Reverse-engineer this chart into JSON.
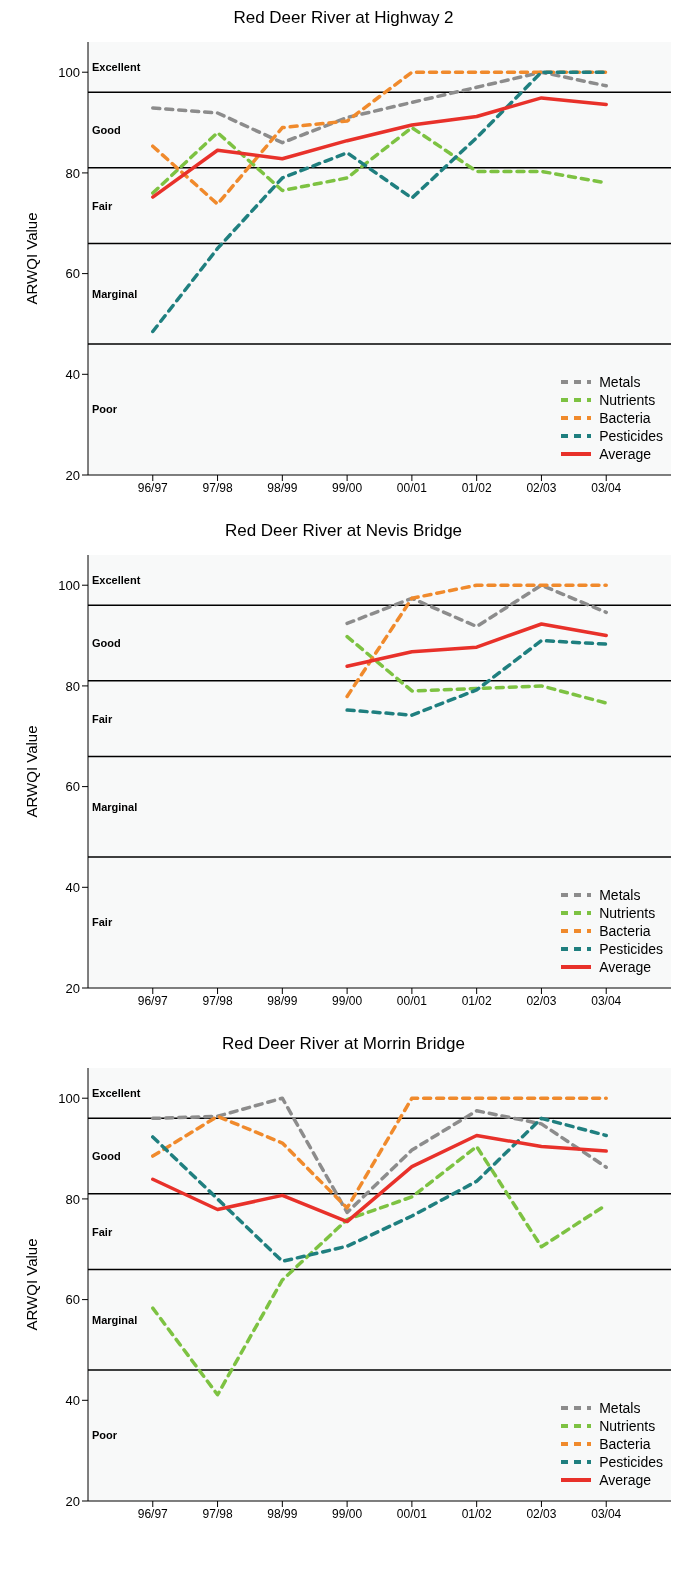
{
  "chart_data": [
    {
      "type": "line",
      "title": "Red Deer River at Highway 2",
      "ylabel": "ARWQI Value",
      "categories": [
        "96/97",
        "97/98",
        "98/99",
        "99/00",
        "00/01",
        "01/02",
        "02/03",
        "03/04"
      ],
      "ylim": [
        20,
        106
      ],
      "yticks": [
        20,
        40,
        60,
        80,
        100
      ],
      "grid": false,
      "legend": "bottom right",
      "marker": "none",
      "series": [
        {
          "name": "Metals",
          "color": "#8c8c8c",
          "line_style": "dashed",
          "values": [
            92.9,
            91.9,
            86,
            91,
            94,
            97,
            100,
            97.3
          ]
        },
        {
          "name": "Nutrients",
          "color": "#7dc242",
          "line_style": "dashed",
          "values": [
            76,
            88,
            76.5,
            79,
            89,
            80.3,
            80.3,
            78
          ]
        },
        {
          "name": "Bacteria",
          "color": "#f08a2c",
          "line_style": "dashed",
          "values": [
            85.3,
            73.8,
            89,
            90.3,
            100,
            100,
            100,
            100
          ]
        },
        {
          "name": "Pesticides",
          "color": "#1f7f7f",
          "line_style": "dashed",
          "values": [
            48.5,
            65,
            79,
            84,
            75,
            87,
            100,
            100
          ]
        },
        {
          "name": "Average",
          "color": "#e8312a",
          "line_style": "solid",
          "values": [
            75.2,
            84.5,
            82.8,
            86.4,
            89.5,
            91.2,
            94.9,
            93.6
          ]
        }
      ],
      "ref_lines": [
        {
          "axis": "y",
          "value": 96,
          "color": "#000000"
        },
        {
          "axis": "y",
          "value": 81,
          "color": "#000000"
        },
        {
          "axis": "y",
          "value": 66,
          "color": "#000000"
        },
        {
          "axis": "y",
          "value": 46,
          "color": "#000000"
        }
      ],
      "bands": [
        {
          "axis": "y",
          "from": 96,
          "to": 106,
          "label": "Excellent",
          "color": "#f8f9f9"
        },
        {
          "axis": "y",
          "from": 81,
          "to": 96,
          "label": "Good",
          "color": "#f8f9f9"
        },
        {
          "axis": "y",
          "from": 66,
          "to": 81,
          "label": "Fair",
          "color": "#f8f9f9"
        },
        {
          "axis": "y",
          "from": 46,
          "to": 66,
          "label": "Marginal",
          "color": "#f8f9f9"
        },
        {
          "axis": "y",
          "from": 20,
          "to": 46,
          "label": "Poor",
          "color": "#f8f9f9"
        }
      ]
    },
    {
      "type": "line",
      "title": "Red Deer River at Nevis Bridge",
      "ylabel": "ARWQI Value",
      "categories": [
        "96/97",
        "97/98",
        "98/99",
        "99/00",
        "00/01",
        "01/02",
        "02/03",
        "03/04"
      ],
      "ylim": [
        20,
        106
      ],
      "yticks": [
        20,
        40,
        60,
        80,
        100
      ],
      "grid": false,
      "legend": "bottom right",
      "marker": "none",
      "series": [
        {
          "name": "Metals",
          "color": "#8c8c8c",
          "line_style": "dashed",
          "values": [
            null,
            null,
            null,
            92.4,
            97.4,
            91.8,
            100,
            94.6
          ]
        },
        {
          "name": "Nutrients",
          "color": "#7dc242",
          "line_style": "dashed",
          "values": [
            null,
            null,
            null,
            89.8,
            79,
            79.5,
            80,
            76.6
          ]
        },
        {
          "name": "Bacteria",
          "color": "#f08a2c",
          "line_style": "dashed",
          "values": [
            null,
            null,
            null,
            77.9,
            97.4,
            100,
            100,
            100
          ]
        },
        {
          "name": "Pesticides",
          "color": "#1f7f7f",
          "line_style": "dashed",
          "values": [
            null,
            null,
            null,
            75.2,
            74.2,
            79.2,
            89,
            88.3
          ]
        },
        {
          "name": "Average",
          "color": "#e8312a",
          "line_style": "solid",
          "values": [
            null,
            null,
            null,
            83.9,
            86.8,
            87.7,
            92.3,
            90
          ]
        }
      ],
      "ref_lines": [
        {
          "axis": "y",
          "value": 96,
          "color": "#000000"
        },
        {
          "axis": "y",
          "value": 81,
          "color": "#000000"
        },
        {
          "axis": "y",
          "value": 66,
          "color": "#000000"
        },
        {
          "axis": "y",
          "value": 46,
          "color": "#000000"
        }
      ],
      "bands": [
        {
          "axis": "y",
          "from": 96,
          "to": 106,
          "label": "Excellent",
          "color": "#f8f9f9"
        },
        {
          "axis": "y",
          "from": 81,
          "to": 96,
          "label": "Good",
          "color": "#f8f9f9"
        },
        {
          "axis": "y",
          "from": 66,
          "to": 81,
          "label": "Fair",
          "color": "#f8f9f9"
        },
        {
          "axis": "y",
          "from": 46,
          "to": 66,
          "label": "Marginal",
          "color": "#f8f9f9"
        },
        {
          "axis": "y",
          "from": 20,
          "to": 46,
          "label": "Fair",
          "color": "#f8f9f9"
        }
      ]
    },
    {
      "type": "line",
      "title": "Red Deer River at Morrin Bridge",
      "ylabel": "ARWQI Value",
      "categories": [
        "96/97",
        "97/98",
        "98/99",
        "99/00",
        "00/01",
        "01/02",
        "02/03",
        "03/04"
      ],
      "ylim": [
        20,
        106
      ],
      "yticks": [
        20,
        40,
        60,
        80,
        100
      ],
      "grid": false,
      "legend": "bottom right",
      "marker": "none",
      "series": [
        {
          "name": "Metals",
          "color": "#8c8c8c",
          "line_style": "dashed",
          "values": [
            96,
            96.4,
            100,
            77.3,
            89.7,
            97.5,
            94.9,
            86.3
          ]
        },
        {
          "name": "Nutrients",
          "color": "#7dc242",
          "line_style": "dashed",
          "values": [
            58.3,
            41.1,
            63.9,
            75.9,
            80.4,
            90.4,
            70.5,
            78.8
          ]
        },
        {
          "name": "Bacteria",
          "color": "#f08a2c",
          "line_style": "dashed",
          "values": [
            88.5,
            96.4,
            91.1,
            78.2,
            100,
            100,
            100,
            100
          ]
        },
        {
          "name": "Pesticides",
          "color": "#1f7f7f",
          "line_style": "dashed",
          "values": [
            92.3,
            80,
            67.6,
            70.6,
            76.6,
            83.5,
            96,
            92.6
          ]
        },
        {
          "name": "Average",
          "color": "#e8312a",
          "line_style": "solid",
          "values": [
            83.9,
            77.9,
            80.7,
            75.5,
            86.4,
            92.6,
            90.4,
            89.5
          ]
        }
      ],
      "ref_lines": [
        {
          "axis": "y",
          "value": 96,
          "color": "#000000"
        },
        {
          "axis": "y",
          "value": 81,
          "color": "#000000"
        },
        {
          "axis": "y",
          "value": 66,
          "color": "#000000"
        },
        {
          "axis": "y",
          "value": 46,
          "color": "#000000"
        }
      ],
      "bands": [
        {
          "axis": "y",
          "from": 96,
          "to": 106,
          "label": "Excellent",
          "color": "#f8f9f9"
        },
        {
          "axis": "y",
          "from": 81,
          "to": 96,
          "label": "Good",
          "color": "#f8f9f9"
        },
        {
          "axis": "y",
          "from": 66,
          "to": 81,
          "label": "Fair",
          "color": "#f8f9f9"
        },
        {
          "axis": "y",
          "from": 46,
          "to": 66,
          "label": "Marginal",
          "color": "#f8f9f9"
        },
        {
          "axis": "y",
          "from": 20,
          "to": 46,
          "label": "Poor",
          "color": "#f8f9f9"
        }
      ]
    }
  ]
}
